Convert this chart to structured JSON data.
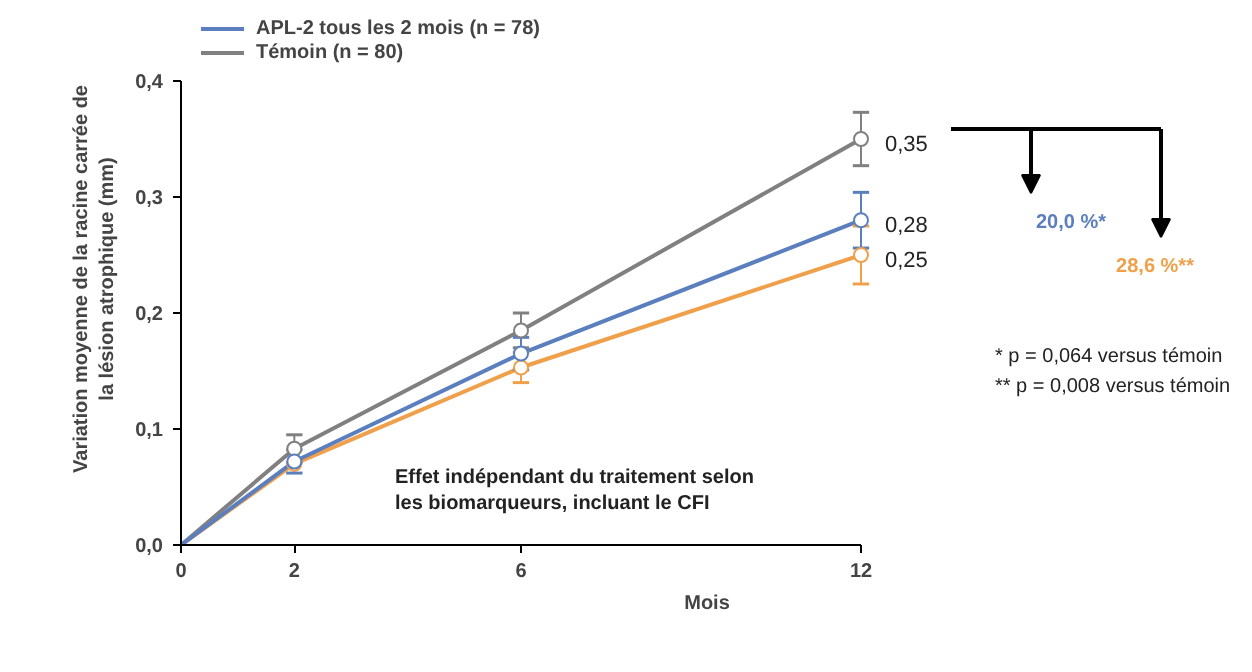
{
  "chart_data": {
    "type": "line",
    "xlabel": "Mois",
    "ylabel": "Variation moyenne de la racine carrée de\nla lésion atrophique (mm)",
    "x": [
      0,
      2,
      6,
      12
    ],
    "xlim": [
      0,
      12
    ],
    "xticks": [
      0,
      2,
      6,
      12
    ],
    "ylim": [
      0,
      0.4
    ],
    "yticks": [
      {
        "value": 0,
        "label": "0,0"
      },
      {
        "value": 0.1,
        "label": "0,1"
      },
      {
        "value": 0.2,
        "label": "0,2"
      },
      {
        "value": 0.3,
        "label": "0,3"
      },
      {
        "value": 0.4,
        "label": "0,4"
      }
    ],
    "marker": "circle",
    "line_style": "solid",
    "grid": false,
    "legend": "top",
    "series": [
      {
        "name": "APL-2 tous les 2 mois (n = 78)",
        "color": "#5b7fbe",
        "values": [
          0,
          0.072,
          0.165,
          0.28
        ],
        "errors": [
          null,
          0.01,
          0.014,
          0.024
        ],
        "value_labels": [
          null,
          null,
          null,
          "0,28"
        ]
      },
      {
        "name": "Témoin (n = 80)",
        "color": "#808080",
        "values": [
          0,
          0.083,
          0.185,
          0.35
        ],
        "errors": [
          null,
          0.012,
          0.015,
          0.023
        ],
        "value_labels": [
          null,
          null,
          null,
          "0,35"
        ]
      },
      {
        "color": "#f0a04b",
        "values": [
          0,
          0.07,
          0.153,
          0.25
        ],
        "errors": [
          null,
          null,
          0.013,
          0.025
        ],
        "value_labels": [
          null,
          null,
          null,
          "0,25"
        ]
      }
    ],
    "annotations": [
      "20,0 %*",
      "28,6 %**",
      "* p = 0,064 versus témoin",
      "** p = 0,008 versus témoin",
      "Effet indépendant du traitement selon\nles biomarqueurs, incluant le CFI"
    ]
  }
}
